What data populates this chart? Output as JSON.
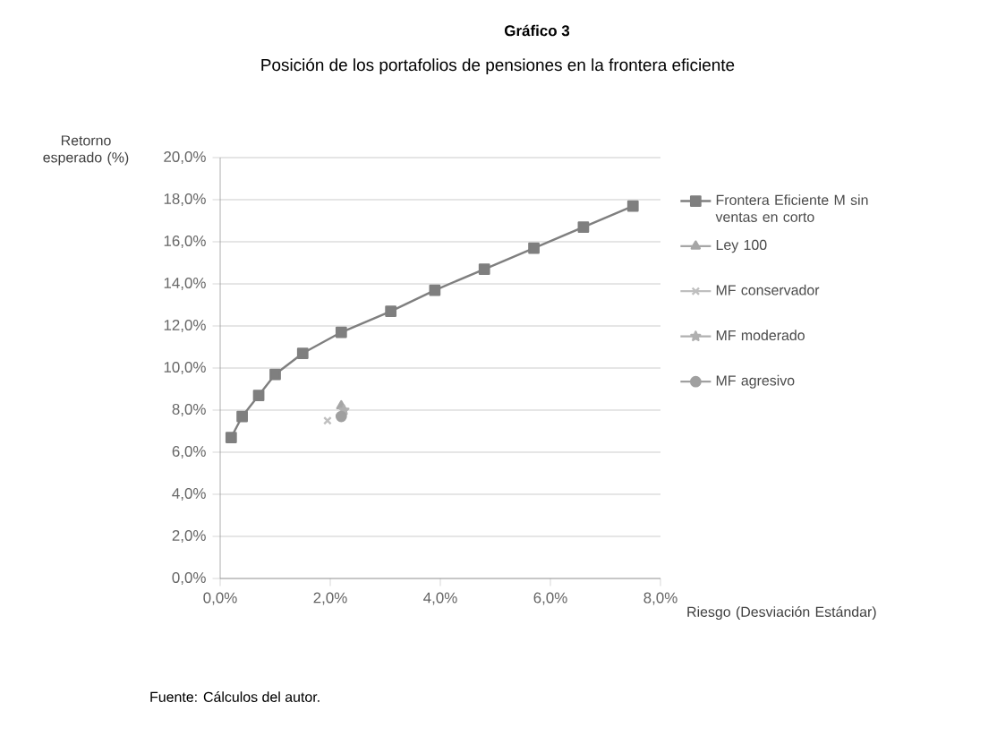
{
  "chart_data": {
    "type": "line",
    "title": "Gráfico 3",
    "subtitle": "Posición de los portafolios de pensiones en la frontera eficiente",
    "ylabel": "Retorno esperado (%)",
    "xlabel": "Riesgo (Desviación Estándar)",
    "annotations": [
      "Fuente: Cálculos del autor."
    ],
    "xlim": [
      0,
      8
    ],
    "ylim": [
      0,
      20
    ],
    "xticks": [
      {
        "value": 0,
        "label": "0,0%"
      },
      {
        "value": 2,
        "label": "2,0%"
      },
      {
        "value": 4,
        "label": "4,0%"
      },
      {
        "value": 6,
        "label": "6,0%"
      },
      {
        "value": 8,
        "label": "8,0%"
      }
    ],
    "yticks": [
      {
        "value": 0,
        "label": "0,0%"
      },
      {
        "value": 2,
        "label": "2,0%"
      },
      {
        "value": 4,
        "label": "4,0%"
      },
      {
        "value": 6,
        "label": "6,0%"
      },
      {
        "value": 8,
        "label": "8,0%"
      },
      {
        "value": 10,
        "label": "10,0%"
      },
      {
        "value": 12,
        "label": "12,0%"
      },
      {
        "value": 14,
        "label": "14,0%"
      },
      {
        "value": 16,
        "label": "16,0%"
      },
      {
        "value": 18,
        "label": "18,0%"
      },
      {
        "value": 20,
        "label": "20,0%"
      }
    ],
    "grid": "y",
    "legend": "right",
    "series": [
      {
        "name": "Frontera Eficiente M sin ventas en corto",
        "color": "#7f7f7f",
        "marker": "square",
        "x": [
          0.2,
          0.4,
          0.7,
          1.0,
          1.5,
          2.2,
          3.1,
          3.9,
          4.8,
          5.7,
          6.6,
          7.5
        ],
        "values": [
          6.7,
          7.7,
          8.7,
          9.7,
          10.7,
          11.7,
          12.7,
          13.7,
          14.7,
          15.7,
          16.7,
          17.7
        ]
      },
      {
        "name": "Ley 100",
        "color": "#a6a6a6",
        "marker": "triangle",
        "x": [
          2.2
        ],
        "values": [
          8.2
        ]
      },
      {
        "name": "MF conservador",
        "color": "#bfbfbf",
        "marker": "cross",
        "x": [
          1.95
        ],
        "values": [
          7.5
        ]
      },
      {
        "name": "MF moderado",
        "color": "#b0b0b0",
        "marker": "star",
        "x": [
          2.25
        ],
        "values": [
          8.0
        ]
      },
      {
        "name": "MF agresivo",
        "color": "#a0a0a0",
        "marker": "circle",
        "x": [
          2.2
        ],
        "values": [
          7.7
        ]
      }
    ]
  }
}
